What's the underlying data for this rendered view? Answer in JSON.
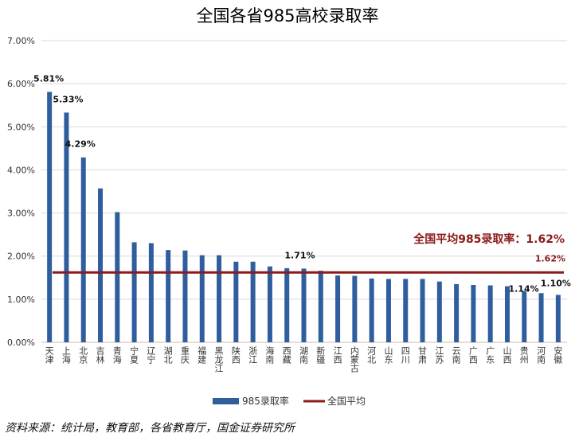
{
  "chart_data": {
    "type": "bar",
    "title": "全国各省985高校录取率",
    "categories": [
      "天津",
      "上海",
      "北京",
      "吉林",
      "青海",
      "宁夏",
      "辽宁",
      "湖北",
      "重庆",
      "福建",
      "黑龙江",
      "陕西",
      "浙江",
      "海南",
      "西藏",
      "湖南",
      "新疆",
      "江西",
      "内蒙古",
      "河北",
      "山东",
      "四川",
      "甘肃",
      "江苏",
      "云南",
      "广西",
      "广东",
      "山西",
      "贵州",
      "河南",
      "安徽"
    ],
    "series": [
      {
        "name": "985录取率",
        "color": "#2e5e9e",
        "values": [
          5.81,
          5.33,
          4.29,
          3.57,
          3.02,
          2.32,
          2.3,
          2.14,
          2.13,
          2.02,
          2.02,
          1.87,
          1.87,
          1.76,
          1.72,
          1.71,
          1.66,
          1.55,
          1.54,
          1.48,
          1.47,
          1.47,
          1.47,
          1.41,
          1.35,
          1.33,
          1.32,
          1.3,
          1.19,
          1.14,
          1.1
        ]
      }
    ],
    "average": {
      "name": "全国平均",
      "value": 1.62,
      "color": "#8b1a1a",
      "annotation": "全国平均985录取率：1.62%",
      "label": "1.62%"
    },
    "data_labels": [
      {
        "index": 0,
        "text": "5.81%"
      },
      {
        "index": 1,
        "text": "5.33%"
      },
      {
        "index": 2,
        "text": "4.29%"
      },
      {
        "index": 15,
        "text": "1.71%"
      },
      {
        "index": 29,
        "text": "1.14%"
      },
      {
        "index": 30,
        "text": "1.10%"
      }
    ],
    "ylim": [
      0,
      7
    ],
    "yticks": [
      "0.00%",
      "1.00%",
      "2.00%",
      "3.00%",
      "4.00%",
      "5.00%",
      "6.00%",
      "7.00%"
    ],
    "grid": true,
    "legend_position": "bottom"
  },
  "source_note": "资料来源：统计局，教育部，各省教育厅，国金证券研究所"
}
